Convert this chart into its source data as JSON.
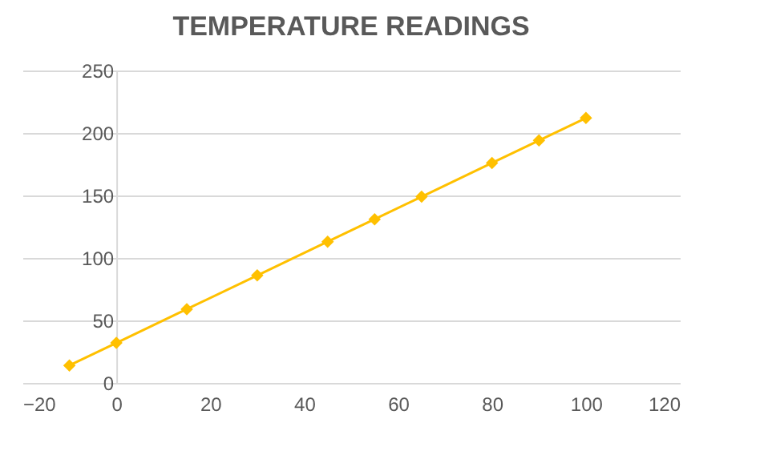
{
  "chart_data": {
    "type": "line",
    "title": "TEMPERATURE READINGS",
    "x": [
      -10,
      0,
      15,
      30,
      45,
      55,
      65,
      80,
      90,
      100
    ],
    "series": [
      {
        "color": "#ffc000",
        "values": [
          14,
          32,
          59,
          86,
          113,
          131,
          149,
          176,
          194,
          212
        ]
      }
    ],
    "xlim": [
      -20,
      120
    ],
    "xticks": [
      -20,
      0,
      20,
      40,
      60,
      80,
      100,
      120
    ],
    "ylim": [
      0,
      250
    ],
    "yticks": [
      0,
      50,
      100,
      150,
      200,
      250
    ],
    "grid": "y",
    "marker": "diamond",
    "line_style": "solid"
  }
}
